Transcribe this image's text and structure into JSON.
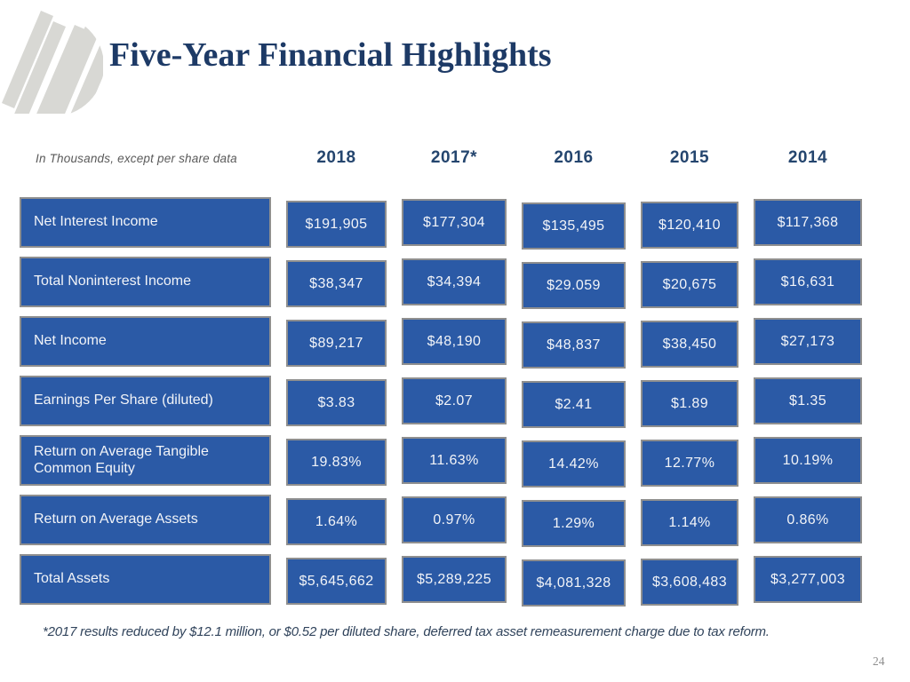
{
  "slide": {
    "title": "Five-Year Financial Highlights",
    "units_note": "In Thousands, except per share data",
    "footnote": "*2017 results reduced by $12.1 million, or $0.52 per diluted share, deferred tax asset remeasurement charge due to tax reform.",
    "page_number": "24"
  },
  "colors": {
    "cell_blue": "#2b5aa6",
    "cell_border_gray": "#8f8f8f",
    "title_navy": "#1d3a66",
    "header_navy": "#24456e",
    "logo_gray": "#d8d8d4"
  },
  "table": {
    "years": [
      "2018",
      "2017*",
      "2016",
      "2015",
      "2014"
    ],
    "rows": [
      {
        "label": "Net Interest Income",
        "values": [
          "$191,905",
          "$177,304",
          "$135,495",
          "$120,410",
          "$117,368"
        ]
      },
      {
        "label": "Total Noninterest Income",
        "values": [
          "$38,347",
          "$34,394",
          "$29.059",
          "$20,675",
          "$16,631"
        ]
      },
      {
        "label": "Net Income",
        "values": [
          "$89,217",
          "$48,190",
          "$48,837",
          "$38,450",
          "$27,173"
        ]
      },
      {
        "label": "Earnings Per Share (diluted)",
        "values": [
          "$3.83",
          "$2.07",
          "$2.41",
          "$1.89",
          "$1.35"
        ]
      },
      {
        "label": "Return on Average Tangible Common Equity",
        "values": [
          "19.83%",
          "11.63%",
          "14.42%",
          "12.77%",
          "10.19%"
        ]
      },
      {
        "label": "Return on Average Assets",
        "values": [
          "1.64%",
          "0.97%",
          "1.29%",
          "1.14%",
          "0.86%"
        ]
      },
      {
        "label": "Total Assets",
        "values": [
          "$5,645,662",
          "$5,289,225",
          "$4,081,328",
          "$3,608,483",
          "$3,277,003"
        ]
      }
    ]
  }
}
